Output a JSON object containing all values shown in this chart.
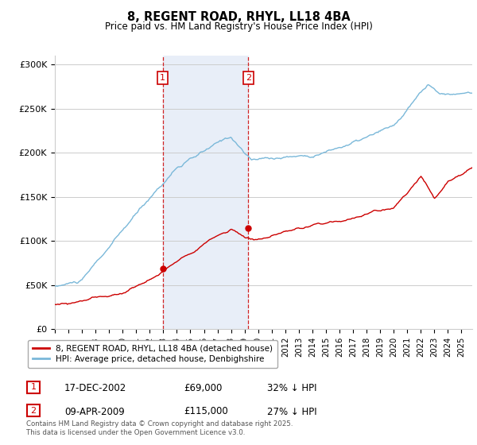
{
  "title": "8, REGENT ROAD, RHYL, LL18 4BA",
  "subtitle": "Price paid vs. HM Land Registry's House Price Index (HPI)",
  "ylabel_ticks": [
    "£0",
    "£50K",
    "£100K",
    "£150K",
    "£200K",
    "£250K",
    "£300K"
  ],
  "ytick_values": [
    0,
    50000,
    100000,
    150000,
    200000,
    250000,
    300000
  ],
  "ylim": [
    0,
    310000
  ],
  "xlim_start": 1995.0,
  "xlim_end": 2025.8,
  "purchase1": {
    "date_num": 2002.96,
    "price": 69000,
    "label": "1",
    "date_str": "17-DEC-2002",
    "pct": "32% ↓ HPI"
  },
  "purchase2": {
    "date_num": 2009.27,
    "price": 115000,
    "label": "2",
    "date_str": "09-APR-2009",
    "pct": "27% ↓ HPI"
  },
  "legend_line1": "8, REGENT ROAD, RHYL, LL18 4BA (detached house)",
  "legend_line2": "HPI: Average price, detached house, Denbighshire",
  "footer": "Contains HM Land Registry data © Crown copyright and database right 2025.\nThis data is licensed under the Open Government Licence v3.0.",
  "hpi_color": "#7ab8d9",
  "price_color": "#cc0000",
  "bg_color": "#e8eef8",
  "plot_bg": "#ffffff",
  "grid_color": "#cccccc",
  "dashed_color": "#cc0000",
  "box_color": "#cc0000"
}
